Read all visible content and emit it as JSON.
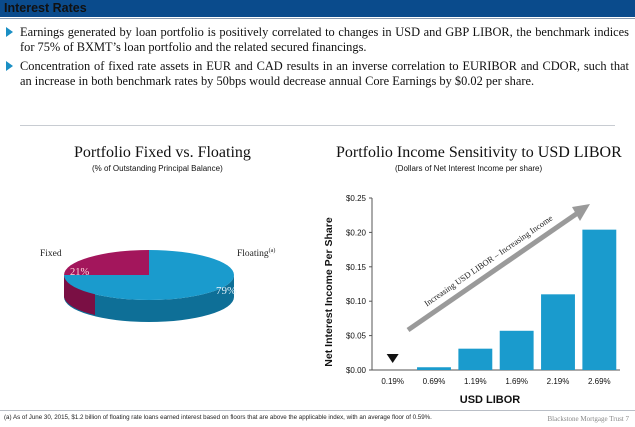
{
  "header": {
    "title": "Interest Rates"
  },
  "bullets": [
    "Earnings generated by loan portfolio is positively correlated to changes in USD and GBP LIBOR, the benchmark indices for 75% of BXMT’s loan portfolio and the related secured financings.",
    "Concentration of fixed rate assets in EUR and CAD results in an inverse correlation to EURIBOR and CDOR, such that an increase in both benchmark rates by 50bps would decrease annual Core Earnings by $0.02 per share."
  ],
  "pie": {
    "title": "Portfolio Fixed vs. Floating",
    "subtitle": "(% of Outstanding Principal Balance)",
    "fixed_label": "Fixed",
    "floating_label": "Floating",
    "floating_note": "(a)",
    "fixed_pct_text": "21%",
    "floating_pct_text": "79%",
    "colors": {
      "fixed": "#a3165c",
      "floating": "#1a9bcd"
    }
  },
  "bar": {
    "title": "Portfolio Income Sensitivity to USD LIBOR",
    "subtitle": "(Dollars of Net Interest Income per share)",
    "ylabel": "Net Interest Income Per Share",
    "xlabel": "USD LIBOR",
    "arrow_label": "Increasing USD LIBOR – Increasing Income",
    "ytick_labels": [
      "$0.00",
      "$0.05",
      "$0.10",
      "$0.15",
      "$0.20",
      "$0.25"
    ],
    "color": "#1a9bcd"
  },
  "chart_data": [
    {
      "type": "pie",
      "title": "Portfolio Fixed vs. Floating",
      "subtitle": "(% of Outstanding Principal Balance)",
      "categories": [
        "Fixed",
        "Floating"
      ],
      "values": [
        21,
        79
      ]
    },
    {
      "type": "bar",
      "title": "Portfolio Income Sensitivity to USD LIBOR",
      "subtitle": "(Dollars of Net Interest Income per share)",
      "xlabel": "USD LIBOR",
      "ylabel": "Net Interest Income Per Share",
      "categories": [
        "0.19%",
        "0.69%",
        "1.19%",
        "1.69%",
        "2.19%",
        "2.69%"
      ],
      "values": [
        -0.005,
        0.004,
        0.031,
        0.057,
        0.11,
        0.204
      ],
      "ylim": [
        0,
        0.25
      ],
      "grid": false
    }
  ],
  "footer": {
    "note": "(a)      As of June 30, 2015, $1.2 billion of floating rate loans earned interest based on floors that are above the applicable index, with an average floor of 0.59%.",
    "brand": "Blackstone Mortgage Trust    7"
  }
}
